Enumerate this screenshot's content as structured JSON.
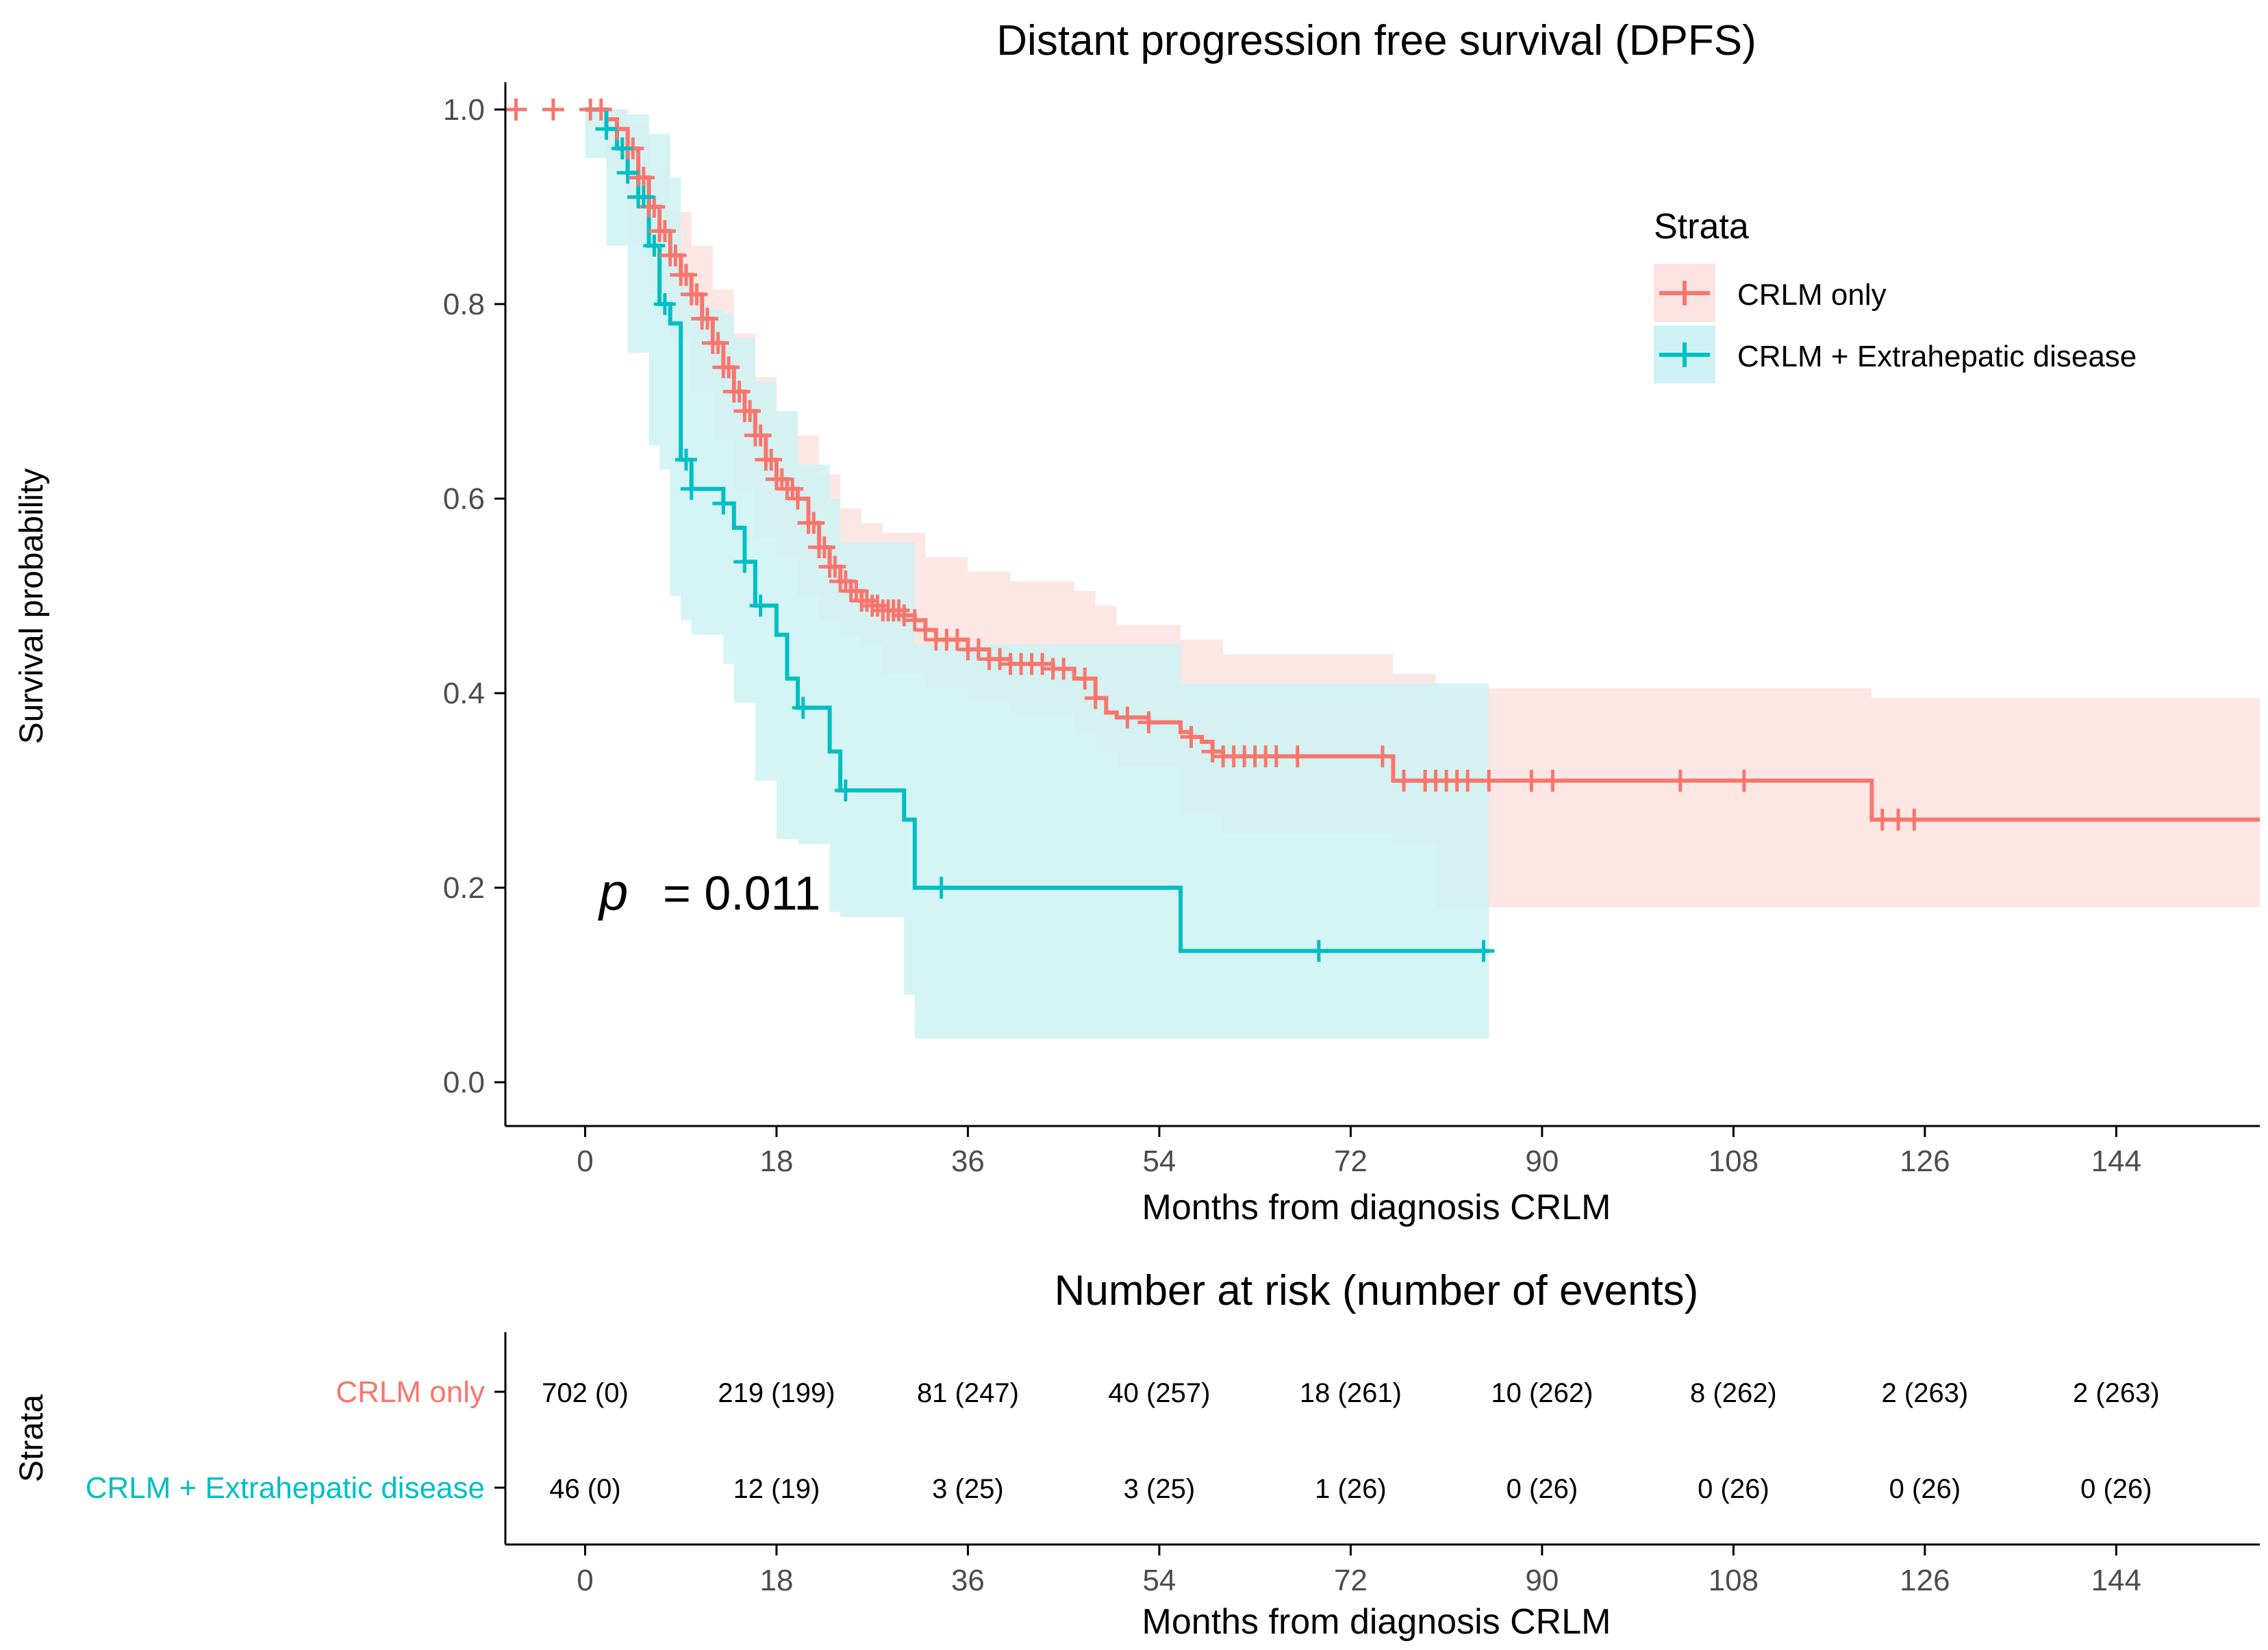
{
  "chart_data": [
    {
      "type": "line",
      "subtype": "kaplan-meier",
      "title": "Distant progression free survival (DPFS)",
      "xlabel": "Months from diagnosis CRLM",
      "ylabel": "Survival probability",
      "xlim": [
        -7.5,
        157.5
      ],
      "ylim": [
        -0.045,
        1.045
      ],
      "xticks": [
        0,
        18,
        36,
        54,
        72,
        90,
        108,
        126,
        144
      ],
      "yticks": [
        "0.0",
        "0.2",
        "0.4",
        "0.6",
        "0.8",
        "1.0"
      ],
      "legend": {
        "title": "Strata",
        "position": "top-right"
      },
      "annotation": {
        "p_label": "p",
        "p_value": "= 0.011",
        "x": 2,
        "y": 0.2
      },
      "series": [
        {
          "name": "CRLM only",
          "color": "#F8766D",
          "band_color": "#FDE3E1",
          "steps": [
            [
              0,
              1.0
            ],
            [
              1,
              1.0
            ],
            [
              2,
              0.99
            ],
            [
              3,
              0.98
            ],
            [
              4,
              0.96
            ],
            [
              5,
              0.93
            ],
            [
              6,
              0.9
            ],
            [
              7,
              0.875
            ],
            [
              8,
              0.85
            ],
            [
              9,
              0.83
            ],
            [
              10,
              0.81
            ],
            [
              11,
              0.785
            ],
            [
              12,
              0.76
            ],
            [
              13,
              0.735
            ],
            [
              14,
              0.71
            ],
            [
              15,
              0.69
            ],
            [
              16,
              0.665
            ],
            [
              17,
              0.64
            ],
            [
              18,
              0.62
            ],
            [
              19,
              0.61
            ],
            [
              20,
              0.6
            ],
            [
              21,
              0.575
            ],
            [
              22,
              0.55
            ],
            [
              23,
              0.53
            ],
            [
              24,
              0.515
            ],
            [
              25,
              0.505
            ],
            [
              26,
              0.495
            ],
            [
              27,
              0.49
            ],
            [
              28,
              0.485
            ],
            [
              30,
              0.48
            ],
            [
              31,
              0.475
            ],
            [
              32,
              0.465
            ],
            [
              33,
              0.455
            ],
            [
              36,
              0.445
            ],
            [
              38,
              0.435
            ],
            [
              40,
              0.43
            ],
            [
              44,
              0.425
            ],
            [
              46,
              0.415
            ],
            [
              48,
              0.395
            ],
            [
              49,
              0.38
            ],
            [
              50,
              0.375
            ],
            [
              53,
              0.37
            ],
            [
              56,
              0.36
            ],
            [
              57,
              0.355
            ],
            [
              58,
              0.35
            ],
            [
              59,
              0.34
            ],
            [
              60,
              0.335
            ],
            [
              75,
              0.335
            ],
            [
              76,
              0.31
            ],
            [
              120,
              0.31
            ],
            [
              121,
              0.27
            ],
            [
              157.5,
              0.27
            ]
          ],
          "upper": [
            [
              0,
              1.0
            ],
            [
              2,
              1.0
            ],
            [
              4,
              0.985
            ],
            [
              6,
              0.94
            ],
            [
              8,
              0.895
            ],
            [
              10,
              0.86
            ],
            [
              12,
              0.815
            ],
            [
              14,
              0.77
            ],
            [
              16,
              0.725
            ],
            [
              18,
              0.685
            ],
            [
              20,
              0.665
            ],
            [
              22,
              0.625
            ],
            [
              24,
              0.59
            ],
            [
              26,
              0.575
            ],
            [
              28,
              0.565
            ],
            [
              32,
              0.54
            ],
            [
              36,
              0.525
            ],
            [
              40,
              0.515
            ],
            [
              46,
              0.505
            ],
            [
              48,
              0.49
            ],
            [
              50,
              0.47
            ],
            [
              56,
              0.455
            ],
            [
              60,
              0.44
            ],
            [
              76,
              0.42
            ],
            [
              80,
              0.405
            ],
            [
              121,
              0.395
            ],
            [
              157.5,
              0.395
            ]
          ],
          "lower": [
            [
              0,
              1.0
            ],
            [
              2,
              0.98
            ],
            [
              4,
              0.94
            ],
            [
              6,
              0.865
            ],
            [
              8,
              0.81
            ],
            [
              10,
              0.765
            ],
            [
              12,
              0.71
            ],
            [
              14,
              0.66
            ],
            [
              16,
              0.61
            ],
            [
              18,
              0.56
            ],
            [
              20,
              0.54
            ],
            [
              22,
              0.5
            ],
            [
              24,
              0.475
            ],
            [
              26,
              0.46
            ],
            [
              28,
              0.45
            ],
            [
              32,
              0.42
            ],
            [
              36,
              0.405
            ],
            [
              40,
              0.39
            ],
            [
              46,
              0.38
            ],
            [
              48,
              0.36
            ],
            [
              50,
              0.34
            ],
            [
              56,
              0.325
            ],
            [
              60,
              0.275
            ],
            [
              76,
              0.255
            ],
            [
              80,
              0.245
            ],
            [
              121,
              0.18
            ],
            [
              157.5,
              0.18
            ]
          ],
          "censor_x": [
            -6.5,
            -3,
            0.5,
            1.5,
            3,
            4,
            4.5,
            5,
            5.5,
            6,
            6.5,
            7,
            7.5,
            8,
            8.5,
            9,
            9.5,
            10,
            10.5,
            11,
            11.5,
            12,
            12.5,
            13,
            13.5,
            14,
            14.5,
            15,
            15.5,
            16,
            16.5,
            17,
            17.5,
            18,
            18.5,
            19,
            19.5,
            20,
            21,
            21.5,
            22,
            22.5,
            23,
            23.5,
            24,
            24.5,
            25,
            25.5,
            26,
            26.5,
            27,
            27.5,
            28,
            28.5,
            29,
            29.5,
            30,
            31,
            32,
            33,
            34,
            35,
            36,
            37,
            38,
            39,
            40,
            41,
            42,
            43,
            44,
            45,
            47,
            48,
            51,
            53,
            57,
            59,
            60,
            61,
            62,
            63,
            64,
            65,
            67,
            75,
            77,
            79,
            80,
            81,
            82,
            83,
            85,
            89,
            91,
            103,
            109,
            122,
            123.5,
            125
          ]
        },
        {
          "name": "CRLM + Extrahepatic disease",
          "color": "#00BFC4",
          "band_color": "#CEF2F3",
          "steps": [
            [
              0,
              1.0
            ],
            [
              1,
              1.0
            ],
            [
              2,
              0.98
            ],
            [
              3,
              0.96
            ],
            [
              4,
              0.935
            ],
            [
              5,
              0.91
            ],
            [
              6,
              0.86
            ],
            [
              7,
              0.8
            ],
            [
              8,
              0.78
            ],
            [
              9,
              0.64
            ],
            [
              10,
              0.61
            ],
            [
              13,
              0.595
            ],
            [
              14,
              0.57
            ],
            [
              15,
              0.535
            ],
            [
              16,
              0.49
            ],
            [
              18,
              0.46
            ],
            [
              19,
              0.415
            ],
            [
              20,
              0.385
            ],
            [
              23,
              0.34
            ],
            [
              24,
              0.3
            ],
            [
              30,
              0.27
            ],
            [
              31,
              0.2
            ],
            [
              56,
              0.135
            ],
            [
              85,
              0.135
            ]
          ],
          "upper": [
            [
              0,
              1.0
            ],
            [
              4,
              0.995
            ],
            [
              6,
              0.975
            ],
            [
              8,
              0.93
            ],
            [
              9,
              0.82
            ],
            [
              10,
              0.795
            ],
            [
              13,
              0.79
            ],
            [
              14,
              0.765
            ],
            [
              16,
              0.72
            ],
            [
              18,
              0.69
            ],
            [
              20,
              0.635
            ],
            [
              23,
              0.6
            ],
            [
              24,
              0.555
            ],
            [
              31,
              0.45
            ],
            [
              56,
              0.41
            ],
            [
              85,
              0.41
            ]
          ],
          "lower": [
            [
              0,
              1.0
            ],
            [
              2,
              0.95
            ],
            [
              4,
              0.86
            ],
            [
              6,
              0.75
            ],
            [
              7,
              0.655
            ],
            [
              8,
              0.63
            ],
            [
              9,
              0.5
            ],
            [
              10,
              0.475
            ],
            [
              13,
              0.46
            ],
            [
              14,
              0.43
            ],
            [
              16,
              0.39
            ],
            [
              18,
              0.31
            ],
            [
              20,
              0.25
            ],
            [
              23,
              0.245
            ],
            [
              24,
              0.175
            ],
            [
              30,
              0.17
            ],
            [
              31,
              0.09
            ],
            [
              56,
              0.045
            ],
            [
              85,
              0.045
            ]
          ],
          "censor_x": [
            2,
            3.5,
            4,
            5,
            5.5,
            6.5,
            7.5,
            9.5,
            10,
            13,
            15,
            16.5,
            20.5,
            24.5,
            33.5,
            69,
            84.5
          ]
        }
      ]
    },
    {
      "type": "table",
      "title": "Number at risk (number of events)",
      "xlabel": "Months from diagnosis CRLM",
      "ylabel": "Strata",
      "xticks": [
        0,
        18,
        36,
        54,
        72,
        90,
        108,
        126,
        144
      ],
      "rows": [
        {
          "name": "CRLM only",
          "color": "#F8766D",
          "values": [
            "702 (0)",
            "219 (199)",
            "81 (247)",
            "40 (257)",
            "18 (261)",
            "10 (262)",
            "8 (262)",
            "2 (263)",
            "2 (263)"
          ]
        },
        {
          "name": "CRLM + Extrahepatic disease",
          "color": "#00BFC4",
          "values": [
            "46 (0)",
            "12 (19)",
            "3 (25)",
            "3 (25)",
            "1 (26)",
            "0 (26)",
            "0 (26)",
            "0 (26)",
            "0 (26)"
          ]
        }
      ]
    }
  ]
}
